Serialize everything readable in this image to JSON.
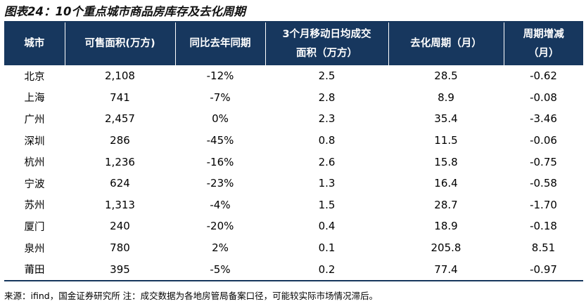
{
  "title": "图表24：10个重点城市商品房库存及去化周期",
  "table": {
    "headers": [
      "城市",
      "可售面积(万方)",
      "同比去年同期",
      "3个月移动日均成交面积（万方）",
      "去化周期（月）",
      "周期增减（月）"
    ],
    "header_lines": [
      [
        "城市"
      ],
      [
        "可售面积(万方)"
      ],
      [
        "同比去年同期"
      ],
      [
        "3个月移动日均成交",
        "面积（万方）"
      ],
      [
        "去化周期（月）"
      ],
      [
        "周期增减",
        "（月）"
      ]
    ],
    "rows": [
      [
        "北京",
        "2,108",
        "-12%",
        "2.5",
        "28.5",
        "-0.62"
      ],
      [
        "上海",
        "741",
        "-7%",
        "2.8",
        "8.9",
        "-0.08"
      ],
      [
        "广州",
        "2,457",
        "0%",
        "2.3",
        "35.4",
        "-3.46"
      ],
      [
        "深圳",
        "286",
        "-45%",
        "0.8",
        "11.5",
        "-0.06"
      ],
      [
        "杭州",
        "1,236",
        "-16%",
        "2.6",
        "15.8",
        "-0.75"
      ],
      [
        "宁波",
        "624",
        "-23%",
        "1.3",
        "16.4",
        "-0.58"
      ],
      [
        "苏州",
        "1,313",
        "-4%",
        "1.5",
        "28.7",
        "-1.70"
      ],
      [
        "厦门",
        "240",
        "-20%",
        "0.4",
        "18.9",
        "-0.18"
      ],
      [
        "泉州",
        "780",
        "2%",
        "0.1",
        "205.8",
        "8.51"
      ],
      [
        "莆田",
        "395",
        "-5%",
        "0.2",
        "77.4",
        "-0.97"
      ]
    ]
  },
  "source": "来源：ifind，国金证券研究所  注：成交数据为各地房管局备案口径，可能较实际市场情况滞后。",
  "colors": {
    "header_bg": "#17375e",
    "header_text": "#ffffff",
    "rule": "#16365c"
  }
}
